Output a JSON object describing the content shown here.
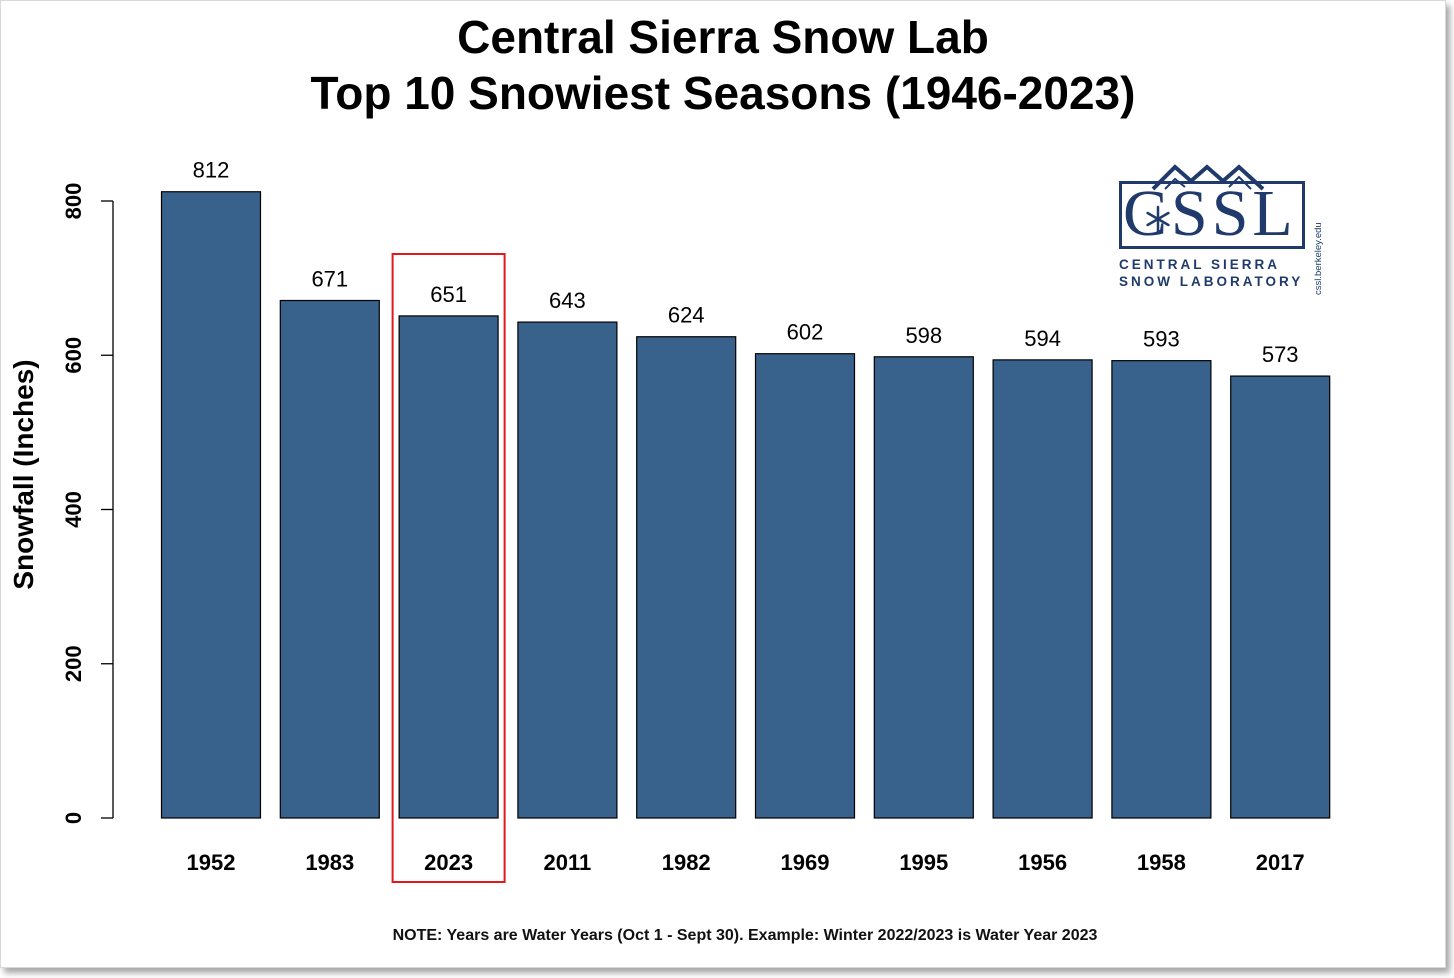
{
  "chart_data": {
    "type": "bar",
    "title_line1": "Central Sierra Snow Lab",
    "title_line2": "Top 10 Snowiest Seasons (1946-2023)",
    "ylabel": "Snowfall (Inches)",
    "xlabel": "",
    "ylim": [
      0,
      850
    ],
    "yticks": [
      0,
      200,
      400,
      600,
      800
    ],
    "categories": [
      "1952",
      "1983",
      "2023",
      "2011",
      "1982",
      "1969",
      "1995",
      "1956",
      "1958",
      "2017"
    ],
    "values": [
      812,
      671,
      651,
      643,
      624,
      602,
      598,
      594,
      593,
      573
    ],
    "data_labels": [
      "812",
      "671",
      "651",
      "643",
      "624",
      "602",
      "598",
      "594",
      "593",
      "573"
    ],
    "highlighted_category": "2023",
    "bar_color": "#38618c",
    "highlight_color": "#e0191c",
    "grid": false,
    "note": "NOTE: Years are Water Years (Oct 1 - Sept 30). Example: Winter 2022/2023 is Water Year 2023"
  },
  "logo": {
    "text": "CSSL",
    "line1": "CENTRAL SIERRA",
    "line2": "SNOW LABORATORY",
    "url": "cssl.berkeley.edu",
    "icon": "snowflake-mountain-icon",
    "color": "#1f3a6b"
  }
}
